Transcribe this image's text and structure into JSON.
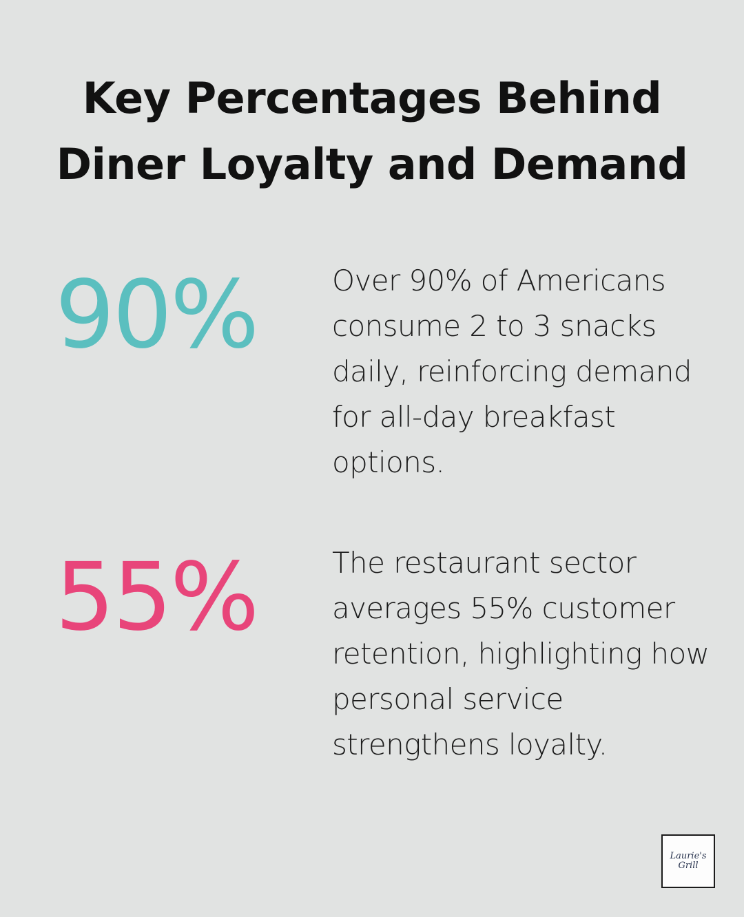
{
  "title": "Key Percentages Behind Diner Loyalty and Demand",
  "stats": [
    {
      "value": "90%",
      "color": "#5bbfbf",
      "text": "Over 90% of Americans consume 2 to 3 snacks daily, reinforcing demand for all-day breakfast options."
    },
    {
      "value": "55%",
      "color": "#e8457a",
      "text": "The restaurant sector averages 55% customer retention, highlighting how personal service strengthens loyalty."
    }
  ],
  "logo": {
    "line1": "Laurie's",
    "line2": "Grill"
  }
}
